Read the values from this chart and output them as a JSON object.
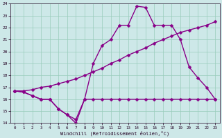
{
  "xlabel": "Windchill (Refroidissement éolien,°C)",
  "bg_color": "#cde8e8",
  "grid_color": "#99ccbb",
  "line_color": "#880088",
  "xlim": [
    -0.5,
    23.5
  ],
  "ylim": [
    14,
    24
  ],
  "xticks": [
    0,
    1,
    2,
    3,
    4,
    5,
    6,
    7,
    8,
    9,
    10,
    11,
    12,
    13,
    14,
    15,
    16,
    17,
    18,
    19,
    20,
    21,
    22,
    23
  ],
  "yticks": [
    14,
    15,
    16,
    17,
    18,
    19,
    20,
    21,
    22,
    23,
    24
  ],
  "line1_x": [
    0,
    1,
    2,
    3,
    4,
    5,
    6,
    7,
    8,
    9,
    10,
    11,
    12,
    13,
    14,
    15,
    16,
    17,
    18,
    19,
    20,
    21,
    22,
    23
  ],
  "line1_y": [
    16.7,
    16.6,
    16.3,
    16.0,
    16.0,
    15.2,
    14.7,
    14.0,
    16.0,
    16.0,
    16.0,
    16.0,
    16.0,
    16.0,
    16.0,
    16.0,
    16.0,
    16.0,
    16.0,
    16.0,
    16.0,
    16.0,
    16.0,
    16.0
  ],
  "line2_x": [
    0,
    1,
    2,
    3,
    4,
    5,
    6,
    7,
    8,
    9,
    10,
    11,
    12,
    13,
    14,
    15,
    16,
    17,
    18,
    19,
    20,
    21,
    22,
    23
  ],
  "line2_y": [
    16.7,
    16.7,
    16.8,
    17.0,
    17.1,
    17.3,
    17.5,
    17.7,
    18.0,
    18.3,
    18.6,
    19.0,
    19.3,
    19.7,
    20.0,
    20.3,
    20.7,
    21.0,
    21.3,
    21.6,
    21.8,
    22.0,
    22.2,
    22.5
  ],
  "line3_x": [
    0,
    1,
    2,
    3,
    4,
    5,
    6,
    7,
    8,
    9,
    10,
    11,
    12,
    13,
    14,
    15,
    16,
    17,
    18,
    19,
    20,
    21,
    22,
    23
  ],
  "line3_y": [
    16.7,
    16.6,
    16.3,
    16.0,
    16.0,
    15.2,
    14.7,
    14.3,
    16.0,
    19.0,
    20.5,
    21.0,
    22.2,
    22.2,
    23.8,
    23.7,
    22.2,
    22.2,
    22.2,
    21.0,
    18.7,
    17.8,
    17.0,
    16.0
  ],
  "markersize": 2.5,
  "linewidth": 1.0
}
